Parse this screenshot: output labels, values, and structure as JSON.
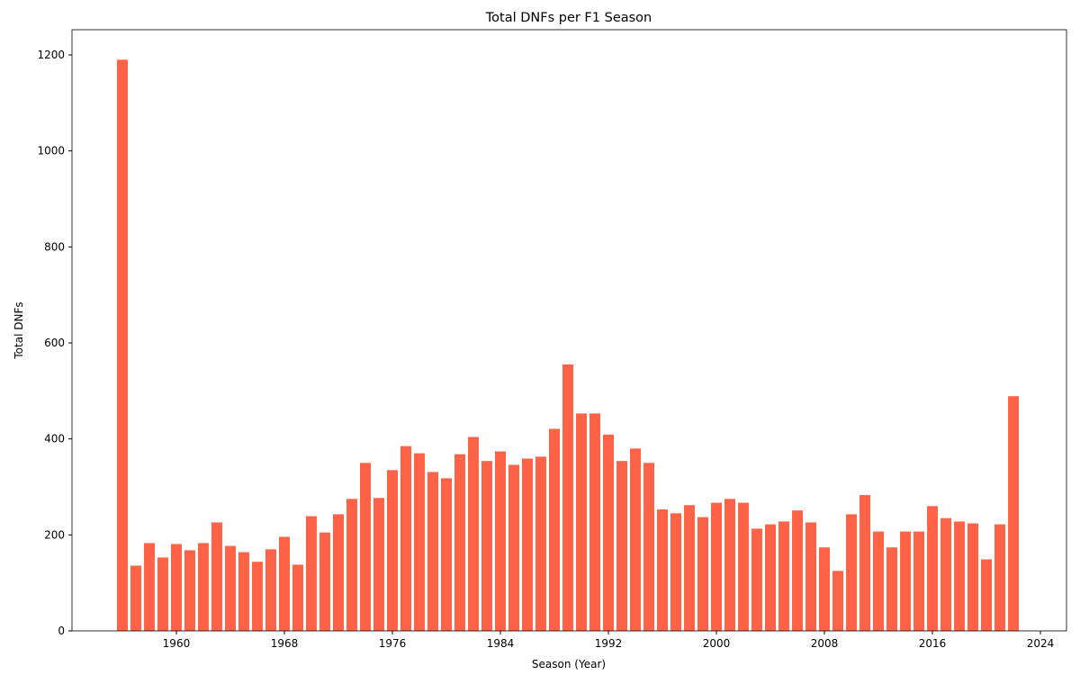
{
  "chart_data": {
    "type": "bar",
    "title": "Total DNFs per F1 Season",
    "xlabel": "Season (Year)",
    "ylabel": "Total DNFs",
    "x": [
      1956,
      1957,
      1958,
      1959,
      1960,
      1961,
      1962,
      1963,
      1964,
      1965,
      1966,
      1967,
      1968,
      1969,
      1970,
      1971,
      1972,
      1973,
      1974,
      1975,
      1976,
      1977,
      1978,
      1979,
      1980,
      1981,
      1982,
      1983,
      1984,
      1985,
      1986,
      1987,
      1988,
      1989,
      1990,
      1991,
      1992,
      1993,
      1994,
      1995,
      1996,
      1997,
      1998,
      1999,
      2000,
      2001,
      2002,
      2003,
      2004,
      2005,
      2006,
      2007,
      2008,
      2009,
      2010,
      2011,
      2012,
      2013,
      2014,
      2015,
      2016,
      2017,
      2018,
      2019,
      2020,
      2021,
      2022
    ],
    "values": [
      1190,
      136,
      183,
      153,
      181,
      168,
      183,
      226,
      177,
      164,
      144,
      170,
      196,
      138,
      239,
      205,
      243,
      275,
      350,
      277,
      335,
      385,
      370,
      331,
      318,
      368,
      404,
      354,
      374,
      346,
      359,
      363,
      421,
      555,
      453,
      453,
      409,
      354,
      380,
      350,
      253,
      245,
      262,
      237,
      267,
      275,
      267,
      213,
      222,
      228,
      251,
      226,
      174,
      125,
      243,
      283,
      207,
      174,
      207,
      207,
      260,
      235,
      228,
      224,
      149,
      222,
      489
    ],
    "color": "#ff6347",
    "xlim": [
      1952.27,
      2025.93
    ],
    "xticks": [
      1960,
      1968,
      1976,
      1984,
      1992,
      2000,
      2008,
      2016,
      2024
    ],
    "ylim": [
      0,
      1252.5
    ],
    "yticks": [
      0,
      200,
      400,
      600,
      800,
      1000,
      1200
    ],
    "bar_width": 0.8
  }
}
